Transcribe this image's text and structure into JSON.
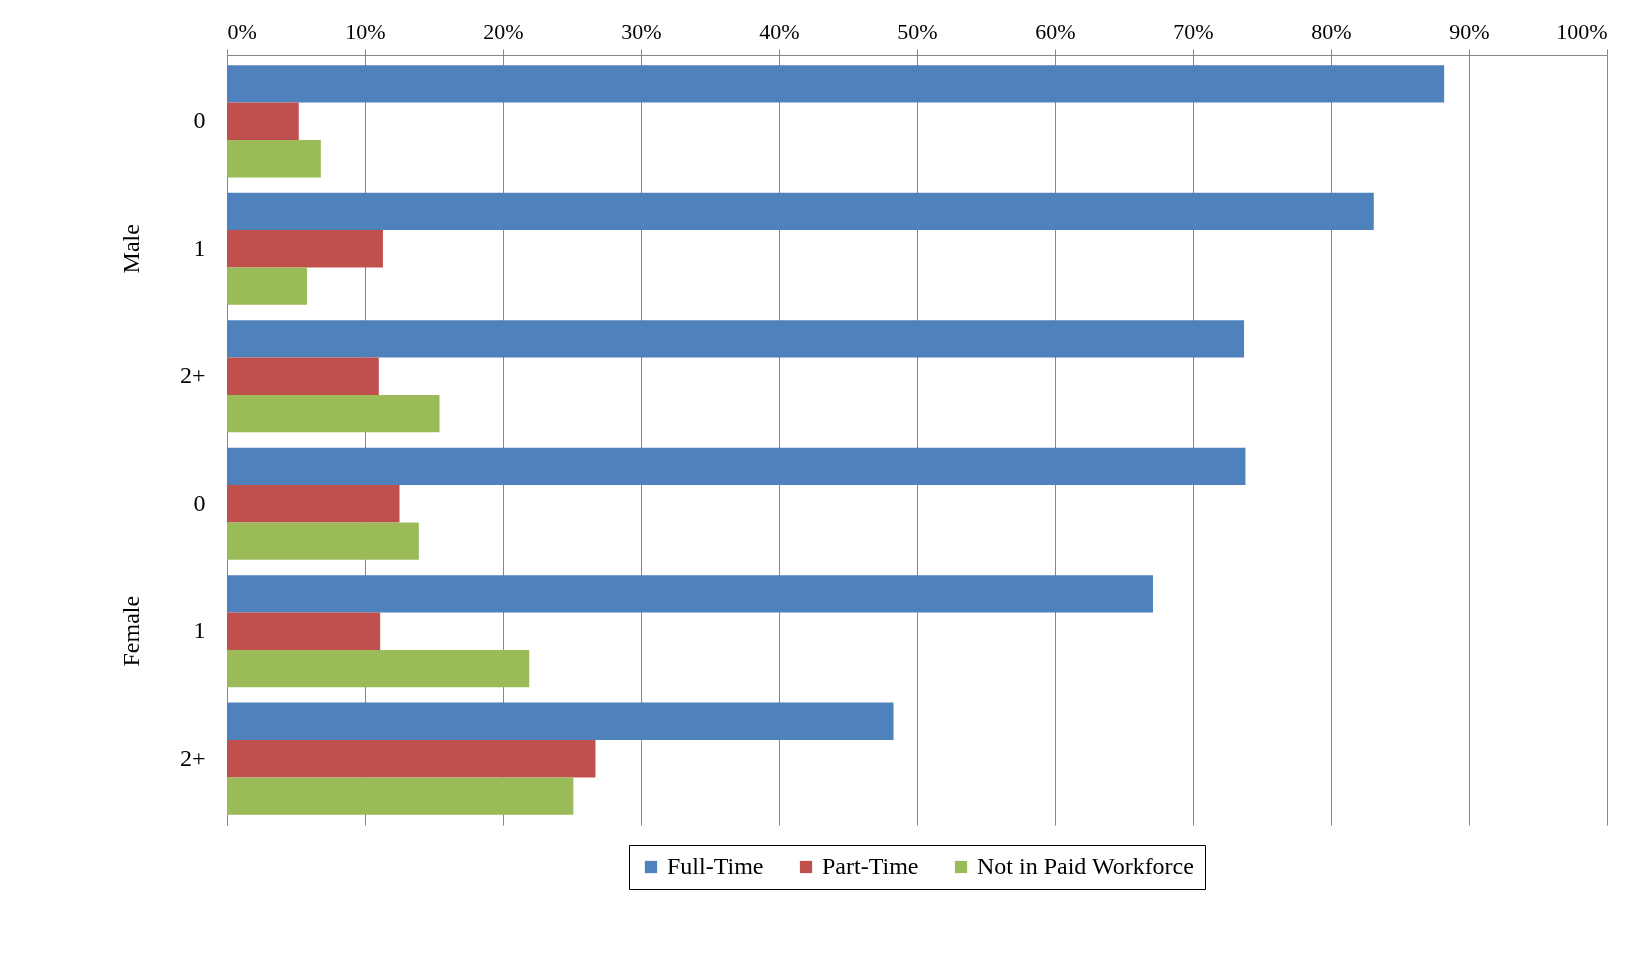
{
  "chart_data": {
    "type": "bar",
    "orientation": "horizontal",
    "categories": [
      "0",
      "1",
      "2+",
      "0",
      "1",
      "2+"
    ],
    "annotations": [
      "Male",
      "Female"
    ],
    "series": [
      {
        "name": "Full-Time",
        "color": "#4f81bd",
        "values": [
          88.2,
          83.1,
          73.7,
          73.8,
          67.1,
          48.3
        ]
      },
      {
        "name": "Part-Time",
        "color": "#c0504d",
        "values": [
          5.2,
          11.3,
          11.0,
          12.5,
          11.1,
          26.7
        ]
      },
      {
        "name": "Not in Paid Workforce",
        "color": "#9bbb59",
        "values": [
          6.8,
          5.8,
          15.4,
          13.9,
          21.9,
          25.1
        ]
      }
    ],
    "xlim": [
      0,
      100
    ],
    "xticks": [
      {
        "value": 0,
        "label": "0%"
      },
      {
        "value": 10,
        "label": "10%"
      },
      {
        "value": 20,
        "label": "20%"
      },
      {
        "value": 30,
        "label": "30%"
      },
      {
        "value": 40,
        "label": "40%"
      },
      {
        "value": 50,
        "label": "50%"
      },
      {
        "value": 60,
        "label": "60%"
      },
      {
        "value": 70,
        "label": "70%"
      },
      {
        "value": 80,
        "label": "80%"
      },
      {
        "value": 90,
        "label": "90%"
      },
      {
        "value": 100,
        "label": "100%"
      }
    ],
    "grid": "x",
    "legend": "bottom"
  }
}
